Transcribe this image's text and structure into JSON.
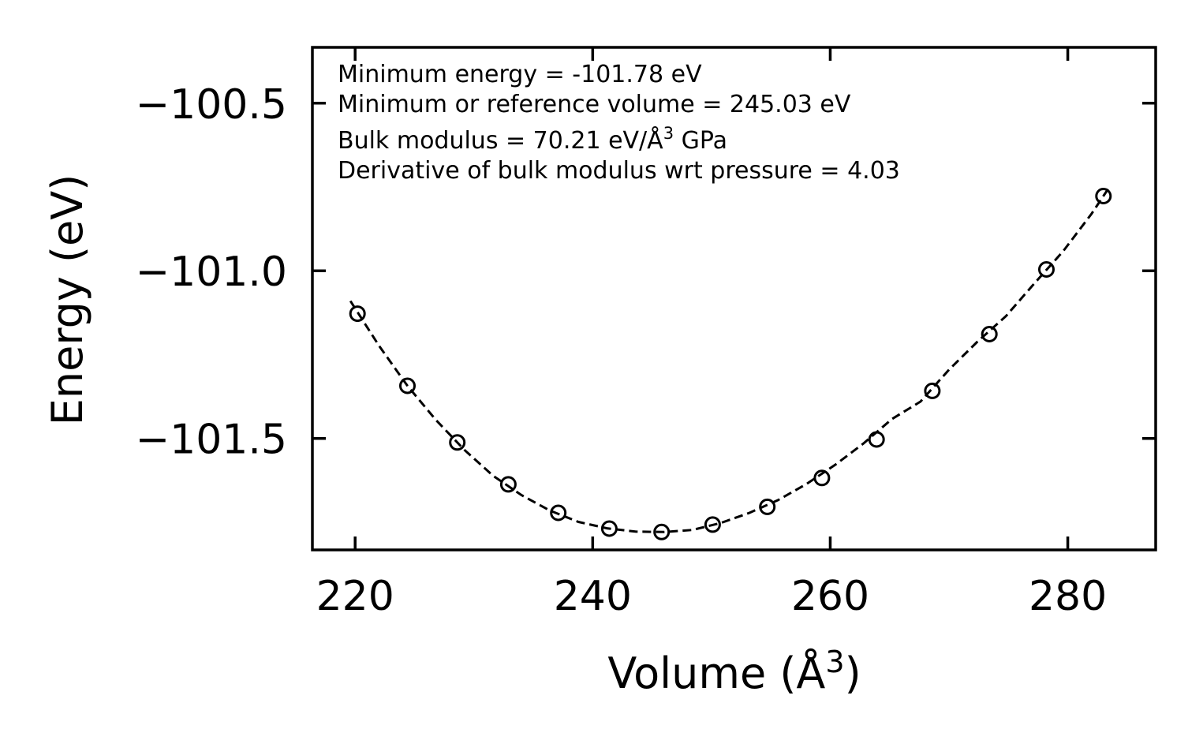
{
  "chart_data": {
    "type": "scatter",
    "title": "",
    "xlabel": "Volume (Å",
    "xlabel_sup": "3",
    "xlabel_close": ")",
    "ylabel": "Energy (eV)",
    "xlim": [
      216.4,
      287.4
    ],
    "ylim": [
      -101.8325,
      -100.3335
    ],
    "x_ticks": [
      220,
      240,
      260,
      280
    ],
    "x_tick_labels": [
      "220",
      "240",
      "260",
      "280"
    ],
    "y_ticks": [
      -100.5,
      -101.0,
      -101.5
    ],
    "y_tick_labels": [
      "−100.5",
      "−101.0",
      "−101.5"
    ],
    "annotations": [
      "Minimum energy = -101.78 eV",
      "Minimum or reference volume = 245.03 eV",
      "Bulk modulus = 70.21 eV/Å",
      "3",
      " GPa",
      "Derivative of bulk modulus wrt pressure = 4.03"
    ],
    "series": [
      {
        "name": "data",
        "style": "open-circle",
        "color": "#000000",
        "x": [
          220.2,
          224.4,
          228.6,
          232.9,
          237.1,
          241.4,
          245.8,
          250.1,
          254.7,
          259.3,
          263.9,
          268.6,
          273.4,
          278.2,
          283.0
        ],
        "y": [
          -101.128,
          -101.343,
          -101.512,
          -101.637,
          -101.722,
          -101.769,
          -101.779,
          -101.757,
          -101.704,
          -101.618,
          -101.503,
          -101.358,
          -101.189,
          -100.996,
          -100.777
        ]
      },
      {
        "name": "fit",
        "style": "dashed-line",
        "color": "#000000",
        "x": [
          219.6,
          222.0,
          224.4,
          226.8,
          229.2,
          231.6,
          234.0,
          236.4,
          238.8,
          241.2,
          243.6,
          246.0,
          248.4,
          250.8,
          253.2,
          255.6,
          258.0,
          260.4,
          262.8,
          265.2,
          267.6,
          270.0,
          272.4,
          274.8,
          277.2,
          279.6,
          282.0,
          283.6
        ],
        "y": [
          -101.09,
          -101.223,
          -101.343,
          -101.445,
          -101.534,
          -101.611,
          -101.669,
          -101.715,
          -101.749,
          -101.768,
          -101.778,
          -101.779,
          -101.773,
          -101.752,
          -101.722,
          -101.684,
          -101.636,
          -101.579,
          -101.515,
          -101.442,
          -101.39,
          -101.295,
          -101.211,
          -101.135,
          -101.037,
          -100.942,
          -100.83,
          -100.745
        ]
      }
    ]
  }
}
